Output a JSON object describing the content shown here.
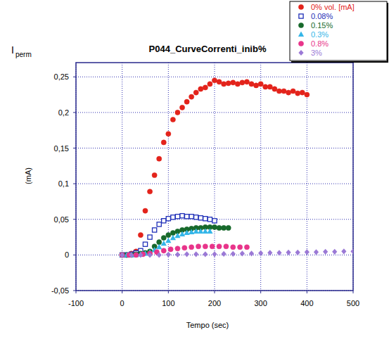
{
  "chart_data": {
    "type": "scatter",
    "title": "P044_CurveCorrenti_inib%",
    "x_label": "Tempo (sec)",
    "y_label_symbol": "I",
    "y_label_subscript": "perm",
    "y_unit": "(mA)",
    "xlim": [
      -100,
      500
    ],
    "xticks": [
      -100,
      0,
      100,
      200,
      300,
      400,
      500
    ],
    "ylim": [
      -0.05,
      0.27
    ],
    "yticks": [
      {
        "value": -0.05,
        "label": "-0,05"
      },
      0,
      {
        "value": 0.05,
        "label": "0,05"
      },
      {
        "value": 0.1,
        "label": "0,1"
      },
      {
        "value": 0.15,
        "label": "0,15"
      },
      {
        "value": 0.2,
        "label": "0,2"
      },
      {
        "value": 0.25,
        "label": "0,25"
      }
    ],
    "grid": true,
    "legend": "top-right",
    "series": [
      {
        "name": "0% vol. [mA]",
        "color": "#e3231b",
        "marker": "circle",
        "x": [
          0,
          10,
          20,
          30,
          40,
          50,
          60,
          70,
          80,
          90,
          100,
          110,
          120,
          130,
          140,
          150,
          160,
          170,
          180,
          190,
          200,
          210,
          220,
          230,
          240,
          250,
          260,
          270,
          280,
          290,
          300,
          310,
          320,
          330,
          340,
          350,
          360,
          370,
          380,
          390,
          400
        ],
        "values": [
          0,
          0,
          0.002,
          0.005,
          0.028,
          0.062,
          0.089,
          0.112,
          0.135,
          0.158,
          0.17,
          0.19,
          0.2,
          0.207,
          0.215,
          0.222,
          0.228,
          0.233,
          0.235,
          0.24,
          0.245,
          0.243,
          0.24,
          0.241,
          0.242,
          0.24,
          0.242,
          0.243,
          0.24,
          0.238,
          0.24,
          0.236,
          0.236,
          0.233,
          0.23,
          0.23,
          0.228,
          0.23,
          0.227,
          0.228,
          0.225
        ]
      },
      {
        "name": "0.08%",
        "color": "#1f2fb8",
        "marker": "square-open",
        "x": [
          0,
          10,
          20,
          30,
          40,
          50,
          60,
          70,
          80,
          90,
          100,
          110,
          120,
          130,
          140,
          150,
          160,
          170,
          180,
          190,
          200
        ],
        "values": [
          0,
          0,
          0.001,
          0.003,
          0.006,
          0.015,
          0.025,
          0.035,
          0.043,
          0.048,
          0.051,
          0.053,
          0.054,
          0.055,
          0.054,
          0.054,
          0.053,
          0.052,
          0.051,
          0.05,
          0.048
        ]
      },
      {
        "name": "0.15%",
        "color": "#17692b",
        "marker": "circle",
        "x": [
          0,
          10,
          20,
          30,
          40,
          50,
          60,
          70,
          80,
          90,
          100,
          110,
          120,
          130,
          140,
          150,
          160,
          170,
          180,
          190,
          200,
          210,
          220,
          230
        ],
        "values": [
          0,
          0,
          0,
          0.001,
          0.002,
          0.003,
          0.005,
          0.012,
          0.018,
          0.024,
          0.028,
          0.031,
          0.033,
          0.035,
          0.036,
          0.037,
          0.038,
          0.038,
          0.039,
          0.039,
          0.039,
          0.038,
          0.038,
          0.038
        ]
      },
      {
        "name": "0.3%",
        "color": "#35b6e8",
        "marker": "triangle",
        "x": [
          0,
          10,
          20,
          30,
          40,
          50,
          60,
          70,
          80,
          90,
          100,
          110,
          120,
          130,
          140,
          150,
          160,
          170,
          180,
          190
        ],
        "values": [
          0,
          0,
          0,
          0,
          0.001,
          0.002,
          0.004,
          0.007,
          0.011,
          0.016,
          0.02,
          0.024,
          0.027,
          0.029,
          0.031,
          0.032,
          0.033,
          0.033,
          0.033,
          0.033
        ]
      },
      {
        "name": "0.8%",
        "color": "#e8348a",
        "marker": "circle",
        "x": [
          0,
          15,
          30,
          45,
          60,
          75,
          90,
          105,
          120,
          135,
          150,
          165,
          180,
          195,
          210,
          225,
          240,
          255,
          270
        ],
        "values": [
          0,
          0,
          0,
          0.001,
          0.002,
          0.004,
          0.006,
          0.008,
          0.009,
          0.01,
          0.011,
          0.012,
          0.012,
          0.012,
          0.012,
          0.012,
          0.011,
          0.011,
          0.011
        ]
      },
      {
        "name": "3%",
        "color": "#9b79d6",
        "marker": "diamond",
        "x": [
          0,
          20,
          40,
          60,
          80,
          100,
          120,
          140,
          160,
          180,
          200,
          220,
          240,
          260,
          280,
          300,
          320,
          340,
          360,
          380,
          400,
          420,
          440,
          460,
          480,
          500
        ],
        "values": [
          0,
          0,
          0,
          0,
          0,
          0.0005,
          0.0005,
          0.001,
          0.001,
          0.001,
          0.001,
          0.0015,
          0.0015,
          0.002,
          0.002,
          0.0025,
          0.003,
          0.003,
          0.0035,
          0.0035,
          0.004,
          0.004,
          0.0045,
          0.0045,
          0.005,
          0.005
        ]
      }
    ]
  }
}
